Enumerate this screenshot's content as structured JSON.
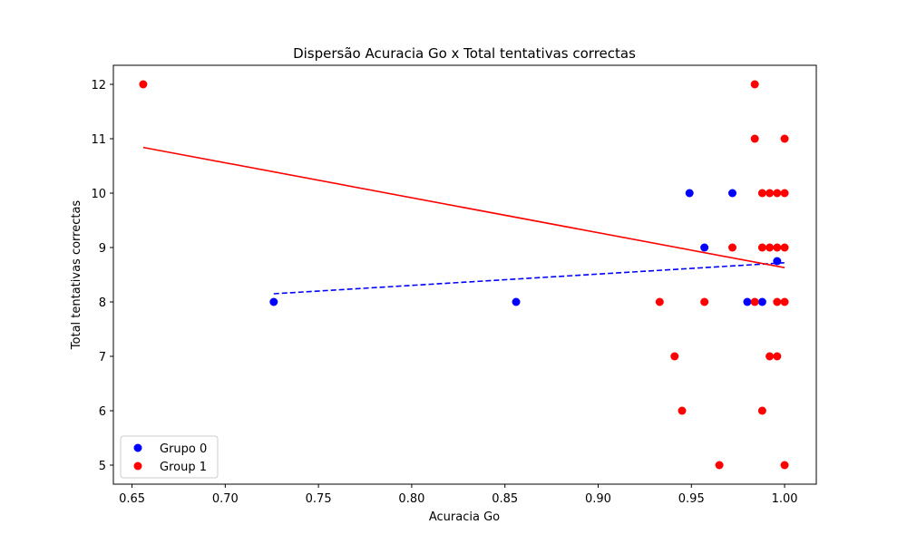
{
  "chart_data": {
    "type": "scatter",
    "title": "Dispersão Acuracia Go x Total tentativas correctas",
    "xlabel": "Acuracia Go",
    "ylabel": "Total tentativas correctas",
    "xlim": [
      0.64,
      1.017
    ],
    "ylim": [
      4.65,
      12.35
    ],
    "xticks": [
      "0.65",
      "0.70",
      "0.75",
      "0.80",
      "0.85",
      "0.90",
      "0.95",
      "1.00"
    ],
    "yticks": [
      "5",
      "6",
      "7",
      "8",
      "9",
      "10",
      "11",
      "12"
    ],
    "grid": false,
    "legend_position": "lower-left",
    "series": [
      {
        "name": "Grupo 0",
        "color": "#0000ff",
        "points": [
          [
            0.726,
            8
          ],
          [
            0.856,
            8
          ],
          [
            0.949,
            10
          ],
          [
            0.972,
            10
          ],
          [
            0.957,
            9
          ],
          [
            0.98,
            8
          ],
          [
            0.988,
            8
          ],
          [
            0.996,
            8.75
          ]
        ],
        "trendline": {
          "x": [
            0.726,
            1.0
          ],
          "y": [
            8.15,
            8.72
          ],
          "style": "dashed"
        }
      },
      {
        "name": "Group 1",
        "color": "#ff0000",
        "points": [
          [
            0.656,
            12
          ],
          [
            0.984,
            12
          ],
          [
            0.984,
            11
          ],
          [
            1.0,
            11
          ],
          [
            0.988,
            10
          ],
          [
            0.992,
            10
          ],
          [
            0.996,
            10
          ],
          [
            1.0,
            10
          ],
          [
            0.972,
            9
          ],
          [
            0.988,
            9
          ],
          [
            0.992,
            9
          ],
          [
            0.996,
            9
          ],
          [
            1.0,
            9
          ],
          [
            0.933,
            8
          ],
          [
            0.957,
            8
          ],
          [
            0.984,
            8
          ],
          [
            0.996,
            8
          ],
          [
            1.0,
            8
          ],
          [
            0.941,
            7
          ],
          [
            0.992,
            7
          ],
          [
            0.996,
            7
          ],
          [
            0.945,
            6
          ],
          [
            0.988,
            6
          ],
          [
            0.965,
            5
          ],
          [
            1.0,
            5
          ]
        ],
        "trendline": {
          "x": [
            0.656,
            1.0
          ],
          "y": [
            10.84,
            8.63
          ],
          "style": "solid"
        }
      }
    ]
  }
}
